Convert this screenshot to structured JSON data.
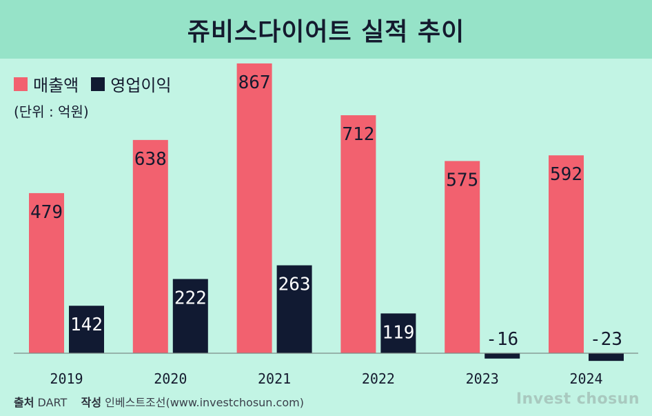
{
  "header": {
    "title": "쥬비스다이어트 실적 추이"
  },
  "legend": {
    "items": [
      {
        "label": "매출액",
        "color": "#f2616f"
      },
      {
        "label": "영업이익",
        "color": "#111a32"
      }
    ]
  },
  "unit": "(단위 : 억원)",
  "footer": {
    "source_label": "출처",
    "source_value": "DART",
    "author_label": "작성",
    "author_value": "인베스트조선(www.investchosun.com)",
    "brand": "Invest chosun"
  },
  "chart_data": {
    "type": "bar",
    "categories": [
      "2019",
      "2020",
      "2021",
      "2022",
      "2023",
      "2024"
    ],
    "series": [
      {
        "name": "매출액",
        "values": [
          479,
          638,
          867,
          712,
          575,
          592
        ],
        "color": "#f2616f"
      },
      {
        "name": "영업이익",
        "values": [
          142,
          222,
          263,
          119,
          -16,
          -23
        ],
        "color": "#111a32"
      }
    ],
    "title": "쥬비스다이어트 실적 추이",
    "ylabel": "(단위 : 억원)",
    "grid": false,
    "legend_position": "top-left"
  }
}
